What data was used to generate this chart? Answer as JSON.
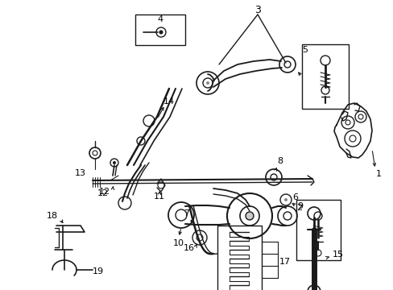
{
  "background_color": "#ffffff",
  "line_color": "#1a1a1a",
  "figure_width": 4.89,
  "figure_height": 3.6,
  "dpi": 100
}
